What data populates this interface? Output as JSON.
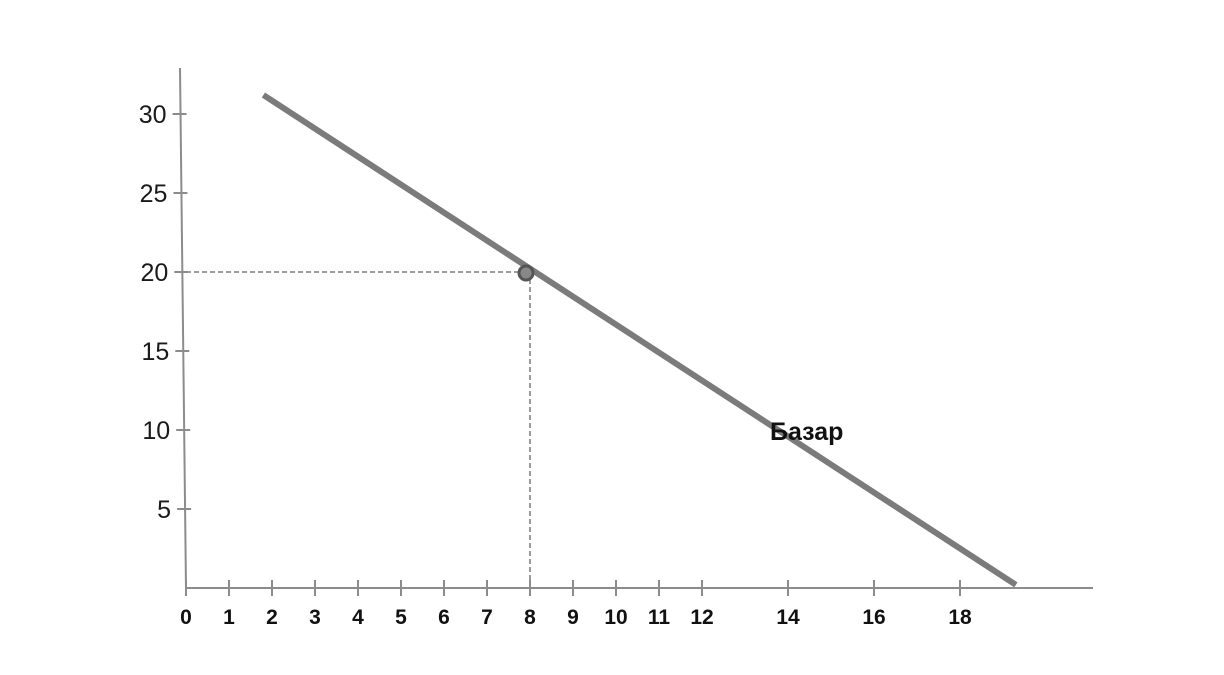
{
  "chart_data": {
    "type": "line",
    "title": "",
    "xlabel": "",
    "ylabel": "",
    "x_ticks": [
      {
        "value": 0,
        "label": "0"
      },
      {
        "value": 1,
        "label": "1"
      },
      {
        "value": 2,
        "label": "2"
      },
      {
        "value": 3,
        "label": "3"
      },
      {
        "value": 4,
        "label": "4"
      },
      {
        "value": 5,
        "label": "5"
      },
      {
        "value": 6,
        "label": "6"
      },
      {
        "value": 7,
        "label": "7"
      },
      {
        "value": 8,
        "label": "8"
      },
      {
        "value": 9,
        "label": "9"
      },
      {
        "value": 10,
        "label": "10"
      },
      {
        "value": 11,
        "label": "11"
      },
      {
        "value": 12,
        "label": "12"
      },
      {
        "value": 14,
        "label": "14"
      },
      {
        "value": 16,
        "label": "16"
      },
      {
        "value": 18,
        "label": "18"
      }
    ],
    "y_ticks": [
      {
        "value": 5,
        "label": "5"
      },
      {
        "value": 10,
        "label": "10"
      },
      {
        "value": 15,
        "label": "15"
      },
      {
        "value": 20,
        "label": "20"
      },
      {
        "value": 25,
        "label": "25"
      },
      {
        "value": 30,
        "label": "30"
      }
    ],
    "xlim": [
      0,
      21
    ],
    "ylim": [
      0,
      33
    ],
    "series": [
      {
        "name": "Базар",
        "color": "#7b7b7b",
        "points": [
          {
            "x": 1.8,
            "y": 31.2
          },
          {
            "x": 19.3,
            "y": 0.2
          }
        ]
      }
    ],
    "highlight_point": {
      "x": 8,
      "y": 20,
      "color": "#555555"
    },
    "guides": [
      {
        "from": {
          "x": 0,
          "y": 20
        },
        "to": {
          "x": 8,
          "y": 20
        }
      },
      {
        "from": {
          "x": 8,
          "y": 0
        },
        "to": {
          "x": 8,
          "y": 20
        }
      }
    ],
    "grid": false,
    "legend": "none"
  }
}
